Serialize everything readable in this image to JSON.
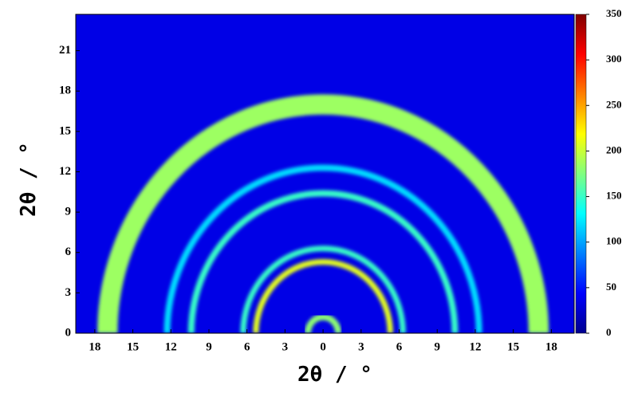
{
  "chart_data": {
    "type": "image",
    "xlabel": "2θ / °",
    "ylabel": "2θ / °",
    "xlim": [
      -19.5,
      19.8
    ],
    "ylim": [
      0,
      23.7
    ],
    "xticks": [
      {
        "value": -18,
        "label": "18"
      },
      {
        "value": -15,
        "label": "15"
      },
      {
        "value": -12,
        "label": "12"
      },
      {
        "value": -9,
        "label": "9"
      },
      {
        "value": -6,
        "label": "6"
      },
      {
        "value": -3,
        "label": "3"
      },
      0,
      3,
      6,
      9,
      12,
      15,
      18
    ],
    "yticks": [
      0,
      3,
      6,
      9,
      12,
      15,
      18,
      21
    ],
    "colorbar": {
      "lim": [
        0,
        350
      ],
      "ticks": [
        0,
        50,
        100,
        150,
        200,
        250,
        300,
        350
      ]
    },
    "background_intensity": 35,
    "rings": [
      {
        "radius": 1.2,
        "width": 0.5,
        "intensity": 180
      },
      {
        "radius": 5.3,
        "width": 0.45,
        "intensity": 210
      },
      {
        "radius": 6.3,
        "width": 0.45,
        "intensity": 150
      },
      {
        "radius": 10.4,
        "width": 0.5,
        "intensity": 150
      },
      {
        "radius": 12.3,
        "width": 0.5,
        "intensity": 120
      },
      {
        "radius": 17.0,
        "width": 1.6,
        "intensity": 185
      }
    ]
  }
}
